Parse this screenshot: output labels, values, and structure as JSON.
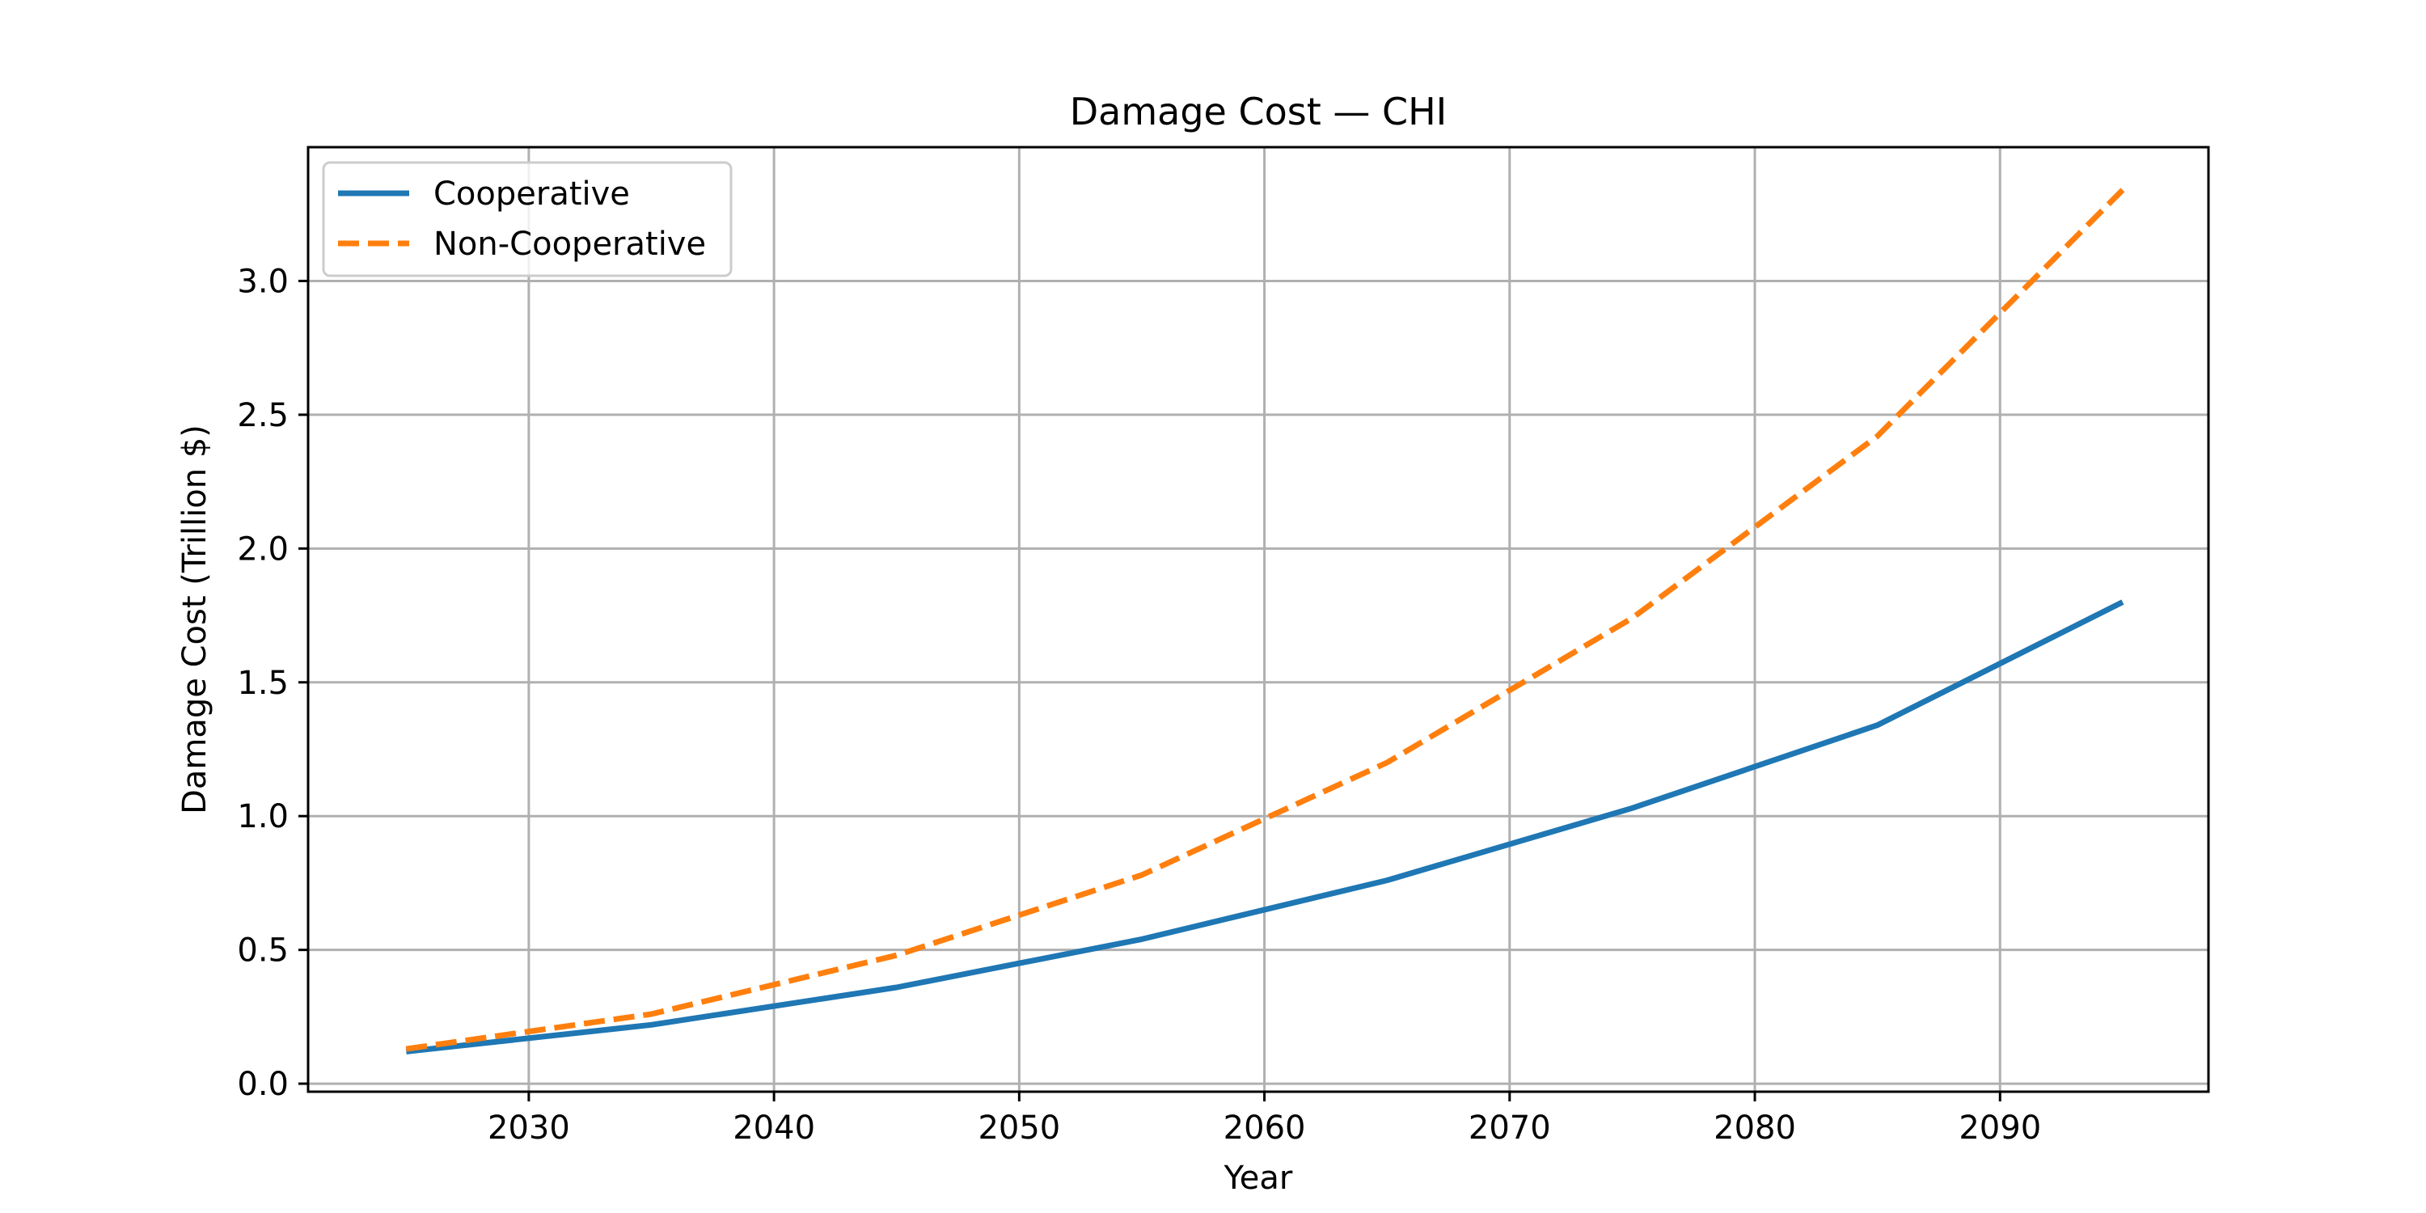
{
  "chart_data": {
    "type": "line",
    "title": "Damage Cost — CHI",
    "xlabel": "Year",
    "ylabel": "Damage Cost (Trillion $)",
    "xlim": [
      2021,
      2098.5
    ],
    "ylim": [
      -0.03,
      3.5
    ],
    "xticks": [
      2030,
      2040,
      2050,
      2060,
      2070,
      2080,
      2090
    ],
    "yticks": [
      0.0,
      0.5,
      1.0,
      1.5,
      2.0,
      2.5,
      3.0
    ],
    "ytick_labels": [
      "0.0",
      "0.5",
      "1.0",
      "1.5",
      "2.0",
      "2.5",
      "3.0"
    ],
    "grid": true,
    "legend_position": "upper-left",
    "x": [
      2025,
      2035,
      2045,
      2055,
      2065,
      2075,
      2085,
      2095
    ],
    "series": [
      {
        "name": "Cooperative",
        "color": "#1f77b4",
        "dash": "solid",
        "values": [
          0.12,
          0.22,
          0.36,
          0.54,
          0.76,
          1.03,
          1.34,
          1.8
        ]
      },
      {
        "name": "Non-Cooperative",
        "color": "#ff7f0e",
        "dash": "dashed",
        "values": [
          0.13,
          0.26,
          0.48,
          0.78,
          1.2,
          1.74,
          2.42,
          3.34
        ]
      }
    ]
  }
}
